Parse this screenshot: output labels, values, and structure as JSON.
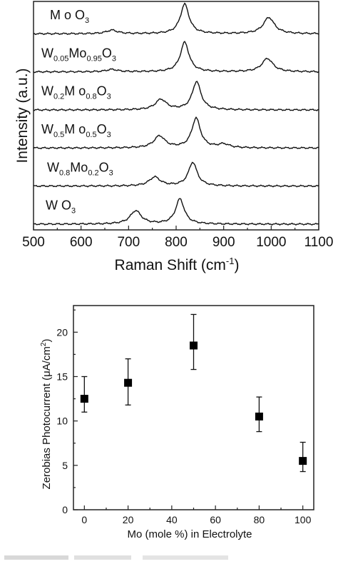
{
  "chart_data": [
    {
      "type": "line",
      "xlabel": "Raman Shift (cm⁻¹)",
      "ylabel": "Intensity (a.u.)",
      "xlim": [
        500,
        1100
      ],
      "xticks": [
        500,
        600,
        700,
        800,
        900,
        1000,
        1100
      ],
      "yticks": "none",
      "stacked": true,
      "series": [
        {
          "name": "MoO₃",
          "label_parts": [
            [
              "M o O",
              ""
            ],
            [
              "3",
              "sub"
            ]
          ],
          "peaks": [
            {
              "x": 665,
              "h": 0.12
            },
            {
              "x": 818,
              "h": 1.0
            },
            {
              "x": 995,
              "h": 0.55
            }
          ]
        },
        {
          "name": "W₀.₀₅Mo₀.₉₅O₃",
          "label_parts": [
            [
              "W",
              ""
            ],
            [
              "0.05",
              "sub"
            ],
            [
              "Mo",
              ""
            ],
            [
              "0.95",
              "sub"
            ],
            [
              "O",
              ""
            ],
            [
              "3",
              "sub"
            ]
          ],
          "peaks": [
            {
              "x": 665,
              "h": 0.08
            },
            {
              "x": 818,
              "h": 1.0
            },
            {
              "x": 992,
              "h": 0.45
            }
          ]
        },
        {
          "name": "W₀.₂Mo₀.₈O₃",
          "label_parts": [
            [
              "W",
              ""
            ],
            [
              "0.2",
              "sub"
            ],
            [
              "M o",
              ""
            ],
            [
              "0.8",
              "sub"
            ],
            [
              "O",
              ""
            ],
            [
              "3",
              "sub"
            ]
          ],
          "peaks": [
            {
              "x": 768,
              "h": 0.35
            },
            {
              "x": 843,
              "h": 0.95
            }
          ]
        },
        {
          "name": "W₀.₅Mo₀.₅O₃",
          "label_parts": [
            [
              "W",
              ""
            ],
            [
              "0.5",
              "sub"
            ],
            [
              "M o",
              ""
            ],
            [
              "0.5",
              "sub"
            ],
            [
              "O",
              ""
            ],
            [
              "3",
              "sub"
            ]
          ],
          "peaks": [
            {
              "x": 765,
              "h": 0.4
            },
            {
              "x": 842,
              "h": 1.0
            },
            {
              "x": 900,
              "h": 0.12
            }
          ]
        },
        {
          "name": "W₀.₈Mo₀.₂O₃",
          "label_parts": [
            [
              "W",
              ""
            ],
            [
              "0.8",
              "sub"
            ],
            [
              "Mo",
              ""
            ],
            [
              "0.2",
              "sub"
            ],
            [
              "O",
              ""
            ],
            [
              "3",
              "sub"
            ]
          ],
          "peaks": [
            {
              "x": 755,
              "h": 0.3
            },
            {
              "x": 835,
              "h": 0.8
            }
          ]
        },
        {
          "name": "WO₃",
          "label_parts": [
            [
              "W O",
              ""
            ],
            [
              "3",
              "sub"
            ]
          ],
          "peaks": [
            {
              "x": 715,
              "h": 0.45
            },
            {
              "x": 808,
              "h": 0.85
            }
          ]
        }
      ]
    },
    {
      "type": "scatter",
      "xlabel": "Mo (mole %) in Electrolyte",
      "ylabel": "Zerobias Photocurrent (μA/cm²)",
      "xlim": [
        -5,
        105
      ],
      "ylim": [
        0,
        23
      ],
      "xticks": [
        0,
        20,
        40,
        60,
        80,
        100
      ],
      "yticks": [
        0,
        5,
        10,
        15,
        20
      ],
      "points": [
        {
          "x": 0,
          "y": 12.5,
          "err_low": 11.0,
          "err_high": 15.0
        },
        {
          "x": 20,
          "y": 14.3,
          "err_low": 11.8,
          "err_high": 17.0
        },
        {
          "x": 50,
          "y": 18.5,
          "err_low": 15.8,
          "err_high": 22.0
        },
        {
          "x": 80,
          "y": 10.5,
          "err_low": 8.8,
          "err_high": 12.7
        },
        {
          "x": 100,
          "y": 5.5,
          "err_low": 4.3,
          "err_high": 7.6
        }
      ]
    }
  ]
}
